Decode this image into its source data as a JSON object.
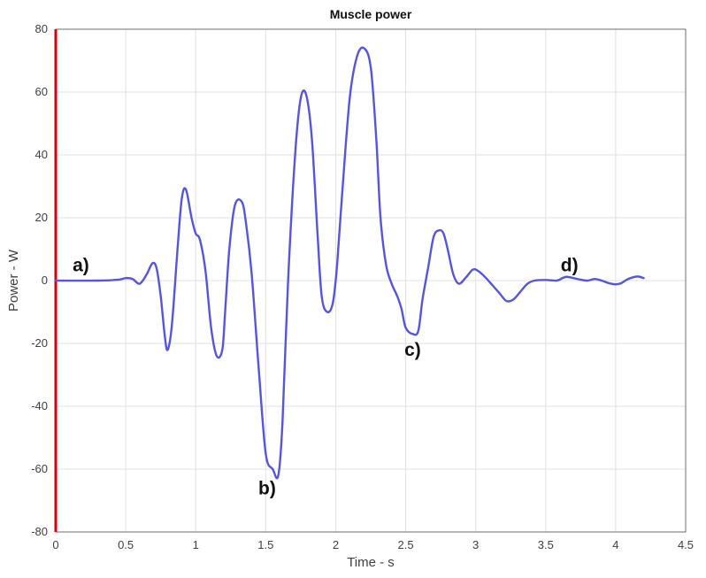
{
  "chart_data": {
    "type": "line",
    "title": "Muscle power",
    "xlabel": "Time - s",
    "ylabel": "Power - W",
    "xlim": [
      0,
      4.5
    ],
    "ylim": [
      -80,
      80
    ],
    "grid": true,
    "x_ticks": [
      "0",
      "0.5",
      "1",
      "1.5",
      "2",
      "2.5",
      "3",
      "3.5",
      "4",
      "4.5"
    ],
    "y_ticks": [
      "80",
      "60",
      "40",
      "20",
      "0",
      "-20",
      "-40",
      "-60",
      "-80"
    ],
    "series": [
      {
        "color": "#5555dd",
        "x": [
          0,
          0.3,
          0.45,
          0.5,
          0.55,
          0.6,
          0.65,
          0.69,
          0.72,
          0.75,
          0.78,
          0.8,
          0.83,
          0.87,
          0.9,
          0.93,
          0.97,
          1.0,
          1.03,
          1.07,
          1.11,
          1.15,
          1.19,
          1.21,
          1.24,
          1.28,
          1.33,
          1.36,
          1.4,
          1.45,
          1.5,
          1.55,
          1.59,
          1.62,
          1.66,
          1.71,
          1.75,
          1.79,
          1.83,
          1.87,
          1.9,
          1.94,
          1.98,
          2.01,
          2.05,
          2.1,
          2.15,
          2.2,
          2.25,
          2.29,
          2.32,
          2.36,
          2.4,
          2.44,
          2.47,
          2.5,
          2.55,
          2.59,
          2.62,
          2.66,
          2.7,
          2.74,
          2.77,
          2.8,
          2.84,
          2.88,
          2.93,
          2.98,
          3.02,
          3.07,
          3.12,
          3.17,
          3.22,
          3.27,
          3.32,
          3.37,
          3.42,
          3.5,
          3.58,
          3.62,
          3.65,
          3.7,
          3.75,
          3.8,
          3.85,
          3.9,
          3.95,
          4.0,
          4.04,
          4.08,
          4.12,
          4.16,
          4.2
        ],
        "y": [
          0,
          0,
          0.3,
          0.8,
          0.5,
          -1,
          2,
          5.5,
          4,
          -5,
          -18,
          -22,
          -14,
          10,
          26,
          29,
          20,
          15,
          13,
          3,
          -15,
          -24,
          -22,
          -10,
          10,
          24,
          25,
          18,
          2,
          -28,
          -55,
          -60,
          -62,
          -45,
          0,
          40,
          58,
          59,
          45,
          15,
          -5,
          -10,
          -7,
          5,
          30,
          58,
          71,
          74,
          68,
          45,
          20,
          5,
          -1,
          -5,
          -9,
          -15,
          -17,
          -16,
          -6,
          4,
          14,
          16,
          15,
          10,
          2,
          -1,
          1,
          3.5,
          3,
          1,
          -1.5,
          -4,
          -6.5,
          -6,
          -3.5,
          -1,
          0,
          0.2,
          0,
          0.8,
          1.2,
          0.8,
          0.3,
          0,
          0.5,
          0,
          -0.8,
          -1.2,
          -0.8,
          0.3,
          1,
          1.3,
          0.8
        ]
      }
    ],
    "annotations": [
      {
        "text": "a)",
        "x": 0.18,
        "y": 3
      },
      {
        "text": "b)",
        "x": 1.51,
        "y": -68
      },
      {
        "text": "c)",
        "x": 2.55,
        "y": -24
      },
      {
        "text": "d)",
        "x": 3.67,
        "y": 3
      }
    ],
    "highlight_color": "#dd0000"
  }
}
